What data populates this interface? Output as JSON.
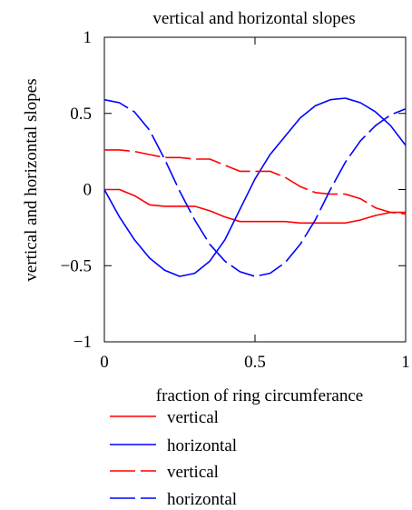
{
  "chart_data": {
    "type": "line",
    "title": "vertical  and horizontal slopes",
    "xlabel": "fraction of ring circumferance",
    "ylabel": "vertical  and horizontal slopes",
    "xlim": [
      0,
      1
    ],
    "ylim": [
      -1,
      1
    ],
    "x_ticks": [
      "0",
      "0.5",
      "1"
    ],
    "y_ticks": [
      "1",
      "0.5",
      "0",
      "−0.5",
      "−1"
    ],
    "grid": false,
    "legend_position": "below",
    "series": [
      {
        "name": "vertical",
        "color": "#ff0000",
        "style": "solid",
        "x": [
          0,
          0.05,
          0.1,
          0.15,
          0.2,
          0.25,
          0.3,
          0.35,
          0.4,
          0.45,
          0.5,
          0.55,
          0.6,
          0.65,
          0.7,
          0.75,
          0.8,
          0.85,
          0.9,
          0.95,
          1.0
        ],
        "y": [
          0.0,
          0.0,
          -0.04,
          -0.1,
          -0.11,
          -0.11,
          -0.11,
          -0.14,
          -0.18,
          -0.21,
          -0.21,
          -0.21,
          -0.21,
          -0.22,
          -0.22,
          -0.22,
          -0.22,
          -0.2,
          -0.17,
          -0.15,
          -0.15
        ]
      },
      {
        "name": "horizontal",
        "color": "#0000ff",
        "style": "solid",
        "x": [
          0,
          0.05,
          0.1,
          0.15,
          0.2,
          0.25,
          0.3,
          0.35,
          0.4,
          0.45,
          0.5,
          0.55,
          0.6,
          0.65,
          0.7,
          0.75,
          0.8,
          0.85,
          0.9,
          0.95,
          1.0
        ],
        "y": [
          0.0,
          -0.18,
          -0.33,
          -0.45,
          -0.53,
          -0.57,
          -0.55,
          -0.47,
          -0.33,
          -0.13,
          0.07,
          0.23,
          0.35,
          0.47,
          0.55,
          0.59,
          0.6,
          0.57,
          0.51,
          0.42,
          0.29
        ]
      },
      {
        "name": "vertical",
        "color": "#ff0000",
        "style": "dashed",
        "x": [
          0,
          0.05,
          0.1,
          0.15,
          0.2,
          0.25,
          0.3,
          0.35,
          0.4,
          0.45,
          0.5,
          0.55,
          0.6,
          0.65,
          0.7,
          0.75,
          0.8,
          0.85,
          0.9,
          0.95,
          1.0
        ],
        "y": [
          0.26,
          0.26,
          0.25,
          0.23,
          0.21,
          0.21,
          0.2,
          0.2,
          0.16,
          0.12,
          0.12,
          0.12,
          0.08,
          0.02,
          -0.02,
          -0.03,
          -0.03,
          -0.06,
          -0.12,
          -0.15,
          -0.16
        ]
      },
      {
        "name": "horizontal",
        "color": "#0000ff",
        "style": "dashed",
        "x": [
          0,
          0.05,
          0.1,
          0.15,
          0.2,
          0.25,
          0.3,
          0.35,
          0.4,
          0.45,
          0.5,
          0.55,
          0.6,
          0.65,
          0.7,
          0.75,
          0.8,
          0.85,
          0.9,
          0.95,
          1.0
        ],
        "y": [
          0.59,
          0.57,
          0.51,
          0.39,
          0.2,
          -0.01,
          -0.2,
          -0.36,
          -0.47,
          -0.54,
          -0.57,
          -0.55,
          -0.48,
          -0.36,
          -0.2,
          0.0,
          0.18,
          0.32,
          0.42,
          0.49,
          0.53
        ]
      }
    ]
  }
}
